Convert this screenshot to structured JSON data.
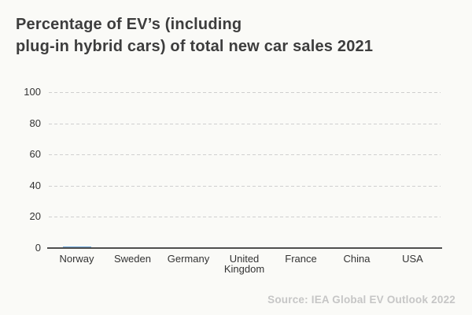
{
  "title": {
    "lines": [
      "Percentage of EV’s (including",
      "plug-in hybrid cars) of total new car sales 2021"
    ]
  },
  "source": {
    "label": "Source: IEA Global EV Outlook 2022"
  },
  "colors": {
    "background": "#fafaf7",
    "title_text": "#3d3d3d",
    "tick_text": "#333333",
    "gridline": "#cfcfcf",
    "axis_line": "#4f4f4f",
    "bar": "#6fa8dc",
    "source_text": "#c6c6c6"
  },
  "chart_data": {
    "type": "bar",
    "title": "Percentage of EV’s (including plug-in hybrid cars) of total new car sales 2021",
    "categories": [
      "Norway",
      "Sweden",
      "Germany",
      "United Kingdom",
      "France",
      "China",
      "USA"
    ],
    "values": [
      1,
      0,
      0,
      0,
      0,
      0,
      0
    ],
    "xlabel": "",
    "ylabel": "",
    "ylim": [
      0,
      100
    ],
    "yticks": [
      0,
      20,
      40,
      60,
      80,
      100
    ],
    "grid": "horizontal-dashed",
    "legend": "none",
    "source": "Source: IEA Global EV Outlook 2022"
  }
}
